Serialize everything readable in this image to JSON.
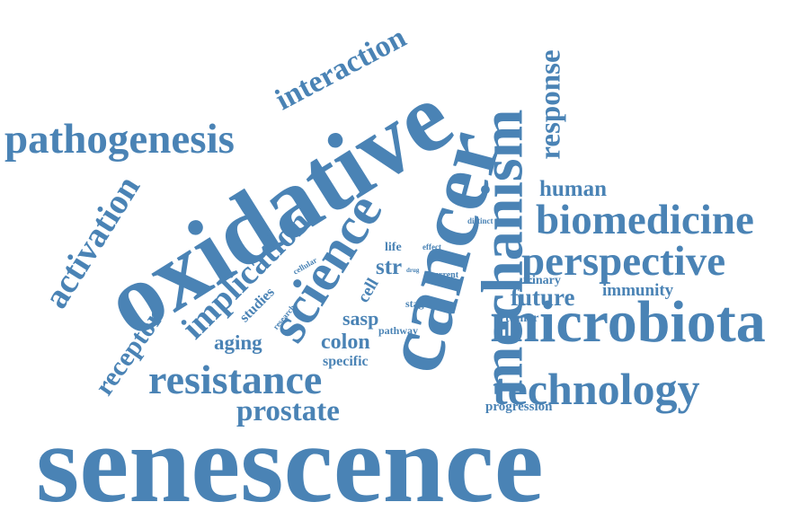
{
  "colors": {
    "word": "#4a83b5",
    "background": "#ffffff"
  },
  "words": {
    "senescence": "senescence",
    "cancer": "cancer",
    "oxidative": "oxidative",
    "mechanism": "mechanism",
    "microbiota": "microbiota",
    "science": "science",
    "biomedicine": "biomedicine",
    "perspective": "perspective",
    "pathogenesis": "pathogenesis",
    "technology": "technology",
    "resistance": "resistance",
    "implication": "implication",
    "interaction": "interaction",
    "activation": "activation",
    "response": "response",
    "prostate": "prostate",
    "receptor": "receptor",
    "human": "human",
    "future": "future",
    "immunity": "immunity",
    "colon": "colon",
    "aging": "aging",
    "studies": "studies",
    "sasp": "sasp",
    "str": "str",
    "cell": "cell",
    "specific": "specific",
    "tumor": "tumor",
    "urinary": "urinary",
    "progression": "progression",
    "stage": "stage",
    "pathway": "pathway",
    "current": "current",
    "life": "life",
    "effect": "effect",
    "distinct": "distinct",
    "drug": "drug",
    "cellular": "cellular",
    "research": "research"
  }
}
